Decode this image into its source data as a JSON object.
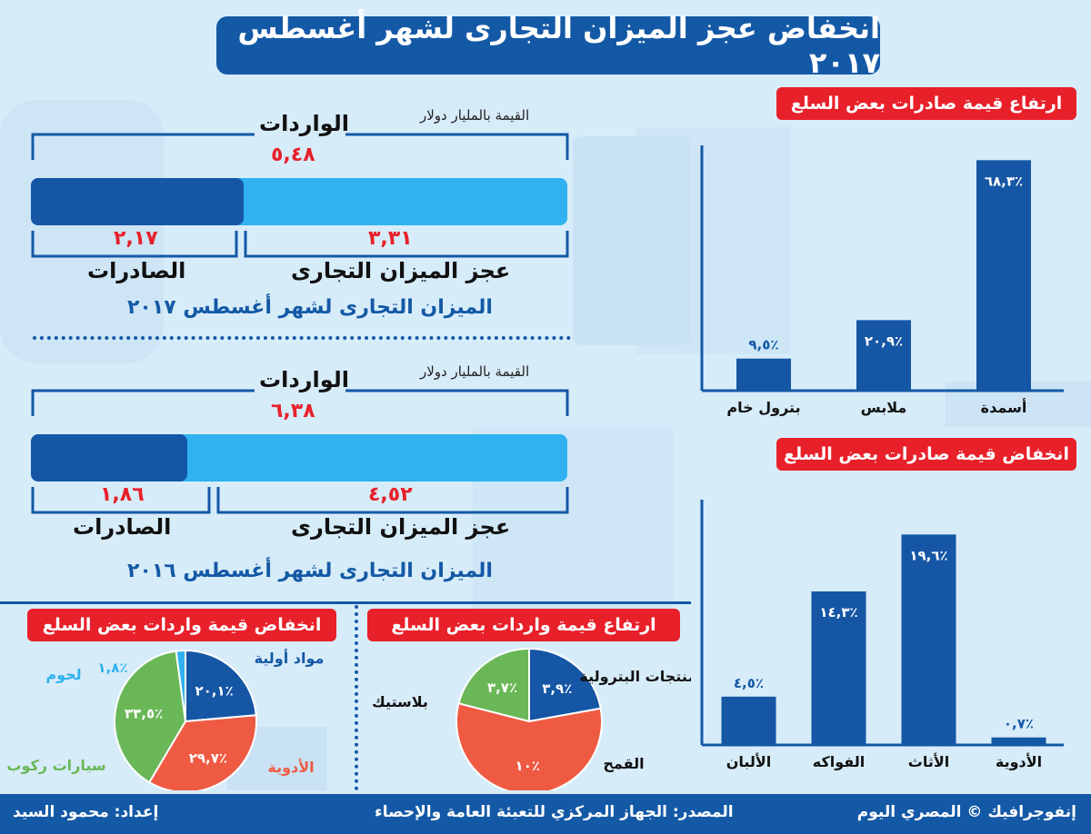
{
  "title": "انخفاض عجز الميزان التجارى لشهر أغسطس ٢٠١٧",
  "panel_2017": {
    "unit": "القيمة بالمليار دولار",
    "imports_label": "الواردات",
    "imports_value": "٥,٤٨",
    "exports_label": "الصادرات",
    "exports_value": "٢,١٧",
    "deficit_label": "عجز الميزان التجارى",
    "deficit_value": "٣,٣١",
    "caption": "الميزان التجارى لشهر أغسطس ٢٠١٧",
    "imports": 5.48,
    "exports": 2.17
  },
  "panel_2016": {
    "unit": "القيمة بالمليار دولار",
    "imports_label": "الواردات",
    "imports_value": "٦,٣٨",
    "exports_label": "الصادرات",
    "exports_value": "١,٨٦",
    "deficit_label": "عجز الميزان التجارى",
    "deficit_value": "٤,٥٢",
    "caption": "الميزان التجارى لشهر أغسطس ٢٠١٦",
    "imports": 6.38,
    "exports": 1.86
  },
  "chart_data": [
    {
      "type": "bar",
      "title": "ارتفاع قيمة صادرات بعض السلع",
      "categories": [
        "أسمدة",
        "ملابس",
        "بترول خام"
      ],
      "values": [
        68.3,
        20.9,
        9.5
      ],
      "labels": [
        "٦٨,٣٪",
        "٢٠,٩٪",
        "٩,٥٪"
      ],
      "color": "#1556a5"
    },
    {
      "type": "bar",
      "title": "انخفاض قيمة صادرات بعض السلع",
      "categories": [
        "الأدوية",
        "الأثاث",
        "الفواكه",
        "الألبان"
      ],
      "values": [
        0.7,
        19.6,
        14.3,
        4.5
      ],
      "labels": [
        "٠,٧٪",
        "١٩,٦٪",
        "١٤,٣٪",
        "٤,٥٪"
      ],
      "color": "#1556a5"
    },
    {
      "type": "pie",
      "title": "ارتفاع قيمة واردات بعض السلع",
      "slices": [
        {
          "name": "المنتجات البترولية",
          "value": 3.9,
          "label": "٣,٩٪",
          "color": "#1556a5"
        },
        {
          "name": "القمح",
          "value": 10,
          "label": "١٠٪",
          "color": "#ef5a43"
        },
        {
          "name": "بلاستيك",
          "value": 3.7,
          "label": "٣,٧٪",
          "color": "#6ab758"
        }
      ]
    },
    {
      "type": "pie",
      "title": "انخفاض قيمة واردات بعض السلع",
      "slices": [
        {
          "name": "مواد أولية",
          "value": 20.1,
          "label": "٢٠,١٪",
          "color": "#1556a5"
        },
        {
          "name": "الأدوية",
          "value": 29.7,
          "label": "٢٩,٧٪",
          "color": "#ef5a43"
        },
        {
          "name": "سيارات ركوب",
          "value": 33.5,
          "label": "٣٣,٥٪",
          "color": "#6ab758"
        },
        {
          "name": "لحوم",
          "value": 1.8,
          "label": "١,٨٪",
          "color": "#2fb2ef"
        }
      ]
    }
  ],
  "footer": {
    "brand": "إنفوجرافيك © المصري اليوم",
    "source": "المصدر: الجهاز المركزي للتعبئة العامة والإحصاء",
    "author": "إعداد: محمود السيد"
  }
}
